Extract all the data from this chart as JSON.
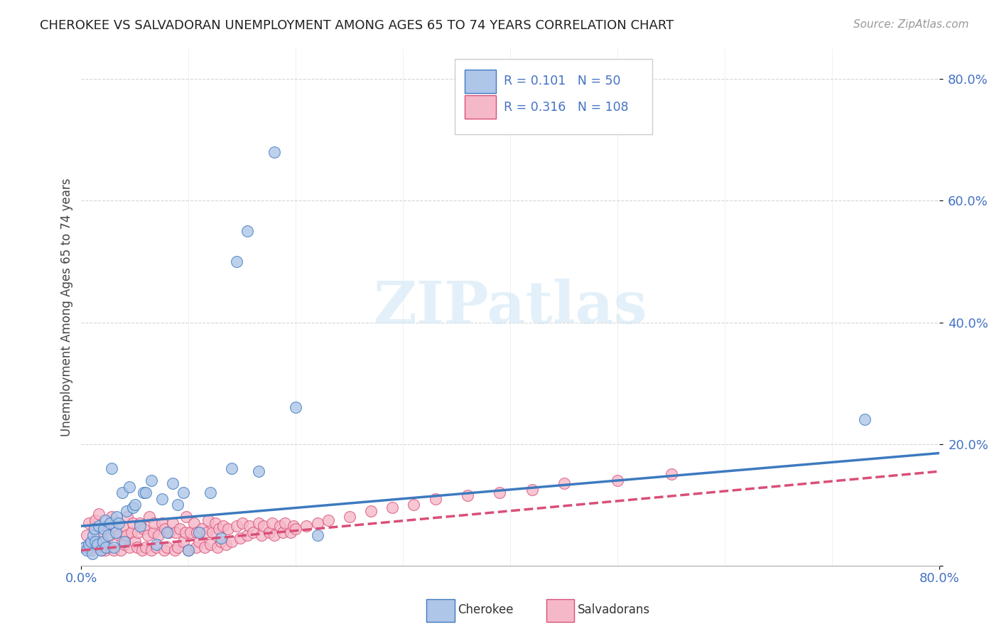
{
  "title": "CHEROKEE VS SALVADORAN UNEMPLOYMENT AMONG AGES 65 TO 74 YEARS CORRELATION CHART",
  "source": "Source: ZipAtlas.com",
  "ylabel": "Unemployment Among Ages 65 to 74 years",
  "xlim": [
    0.0,
    0.8
  ],
  "ylim": [
    0.0,
    0.85
  ],
  "cherokee_color": "#aec6e8",
  "salvadoran_color": "#f5b8c8",
  "cherokee_line_color": "#3d7abf",
  "salvadoran_line_color": "#d94f78",
  "cherokee_R": 0.101,
  "cherokee_N": 50,
  "salvadoran_R": 0.316,
  "salvadoran_N": 108,
  "tick_color": "#4472c4",
  "background_color": "#ffffff",
  "grid_color": "#cccccc",
  "cherokee_trend": [
    0.0,
    0.8,
    0.065,
    0.185
  ],
  "salvadoran_trend": [
    0.0,
    0.8,
    0.025,
    0.155
  ],
  "cherokee_x": [
    0.003,
    0.005,
    0.007,
    0.009,
    0.01,
    0.011,
    0.012,
    0.013,
    0.015,
    0.016,
    0.018,
    0.02,
    0.021,
    0.022,
    0.023,
    0.025,
    0.027,
    0.028,
    0.03,
    0.032,
    0.033,
    0.035,
    0.038,
    0.04,
    0.042,
    0.045,
    0.048,
    0.05,
    0.055,
    0.058,
    0.06,
    0.065,
    0.07,
    0.075,
    0.08,
    0.085,
    0.09,
    0.095,
    0.1,
    0.11,
    0.12,
    0.13,
    0.14,
    0.145,
    0.155,
    0.165,
    0.18,
    0.2,
    0.22,
    0.73
  ],
  "cherokee_y": [
    0.03,
    0.025,
    0.035,
    0.04,
    0.02,
    0.05,
    0.06,
    0.04,
    0.035,
    0.065,
    0.025,
    0.04,
    0.06,
    0.075,
    0.03,
    0.05,
    0.07,
    0.16,
    0.03,
    0.055,
    0.08,
    0.07,
    0.12,
    0.04,
    0.09,
    0.13,
    0.095,
    0.1,
    0.065,
    0.12,
    0.12,
    0.14,
    0.035,
    0.11,
    0.055,
    0.135,
    0.1,
    0.12,
    0.025,
    0.055,
    0.12,
    0.045,
    0.16,
    0.5,
    0.55,
    0.155,
    0.68,
    0.26,
    0.05,
    0.24
  ],
  "salvadoran_x": [
    0.003,
    0.005,
    0.007,
    0.009,
    0.01,
    0.012,
    0.013,
    0.015,
    0.016,
    0.018,
    0.02,
    0.021,
    0.022,
    0.023,
    0.025,
    0.027,
    0.028,
    0.03,
    0.032,
    0.035,
    0.037,
    0.038,
    0.039,
    0.04,
    0.042,
    0.043,
    0.045,
    0.047,
    0.048,
    0.05,
    0.052,
    0.053,
    0.055,
    0.057,
    0.058,
    0.06,
    0.062,
    0.063,
    0.065,
    0.067,
    0.068,
    0.07,
    0.072,
    0.075,
    0.077,
    0.078,
    0.08,
    0.082,
    0.085,
    0.087,
    0.088,
    0.09,
    0.092,
    0.095,
    0.097,
    0.098,
    0.1,
    0.102,
    0.105,
    0.107,
    0.108,
    0.11,
    0.112,
    0.115,
    0.117,
    0.118,
    0.12,
    0.122,
    0.125,
    0.127,
    0.128,
    0.13,
    0.132,
    0.135,
    0.137,
    0.14,
    0.145,
    0.148,
    0.15,
    0.155,
    0.157,
    0.16,
    0.165,
    0.168,
    0.17,
    0.175,
    0.178,
    0.18,
    0.185,
    0.188,
    0.19,
    0.195,
    0.198,
    0.2,
    0.21,
    0.22,
    0.23,
    0.25,
    0.27,
    0.29,
    0.31,
    0.33,
    0.36,
    0.39,
    0.42,
    0.45,
    0.5,
    0.55
  ],
  "salvadoran_y": [
    0.03,
    0.05,
    0.07,
    0.025,
    0.04,
    0.06,
    0.075,
    0.03,
    0.085,
    0.025,
    0.04,
    0.055,
    0.025,
    0.065,
    0.03,
    0.05,
    0.08,
    0.025,
    0.06,
    0.05,
    0.025,
    0.04,
    0.065,
    0.035,
    0.05,
    0.08,
    0.03,
    0.055,
    0.07,
    0.04,
    0.03,
    0.055,
    0.07,
    0.025,
    0.06,
    0.03,
    0.05,
    0.08,
    0.025,
    0.055,
    0.07,
    0.03,
    0.05,
    0.07,
    0.025,
    0.06,
    0.03,
    0.055,
    0.07,
    0.025,
    0.055,
    0.03,
    0.06,
    0.04,
    0.055,
    0.08,
    0.025,
    0.055,
    0.07,
    0.03,
    0.055,
    0.04,
    0.06,
    0.03,
    0.055,
    0.075,
    0.035,
    0.055,
    0.07,
    0.03,
    0.06,
    0.04,
    0.065,
    0.035,
    0.06,
    0.04,
    0.065,
    0.045,
    0.07,
    0.05,
    0.065,
    0.055,
    0.07,
    0.05,
    0.065,
    0.055,
    0.07,
    0.05,
    0.065,
    0.055,
    0.07,
    0.055,
    0.065,
    0.06,
    0.065,
    0.07,
    0.075,
    0.08,
    0.09,
    0.095,
    0.1,
    0.11,
    0.115,
    0.12,
    0.125,
    0.135,
    0.14,
    0.15
  ]
}
